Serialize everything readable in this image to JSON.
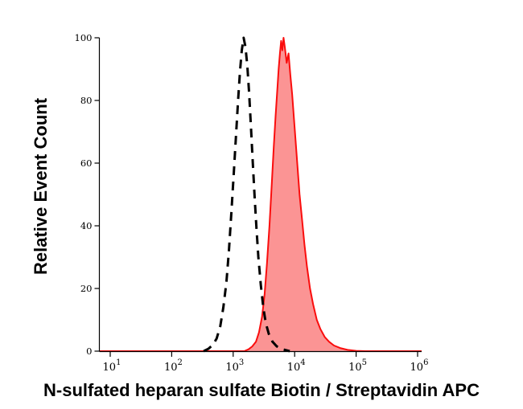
{
  "figure": {
    "background": "#ffffff",
    "axis_color": "#000000"
  },
  "chart_data": {
    "type": "area",
    "subtype": "flow-cytometry-histogram",
    "title": "",
    "xlabel": "N-sulfated heparan sulfate Biotin / Streptavidin APC",
    "ylabel": "Relative Event Count",
    "x_scale": "log10",
    "xlim_log10": [
      1,
      6
    ],
    "ylim": [
      0,
      100
    ],
    "y_ticks": [
      0,
      20,
      40,
      60,
      80,
      100
    ],
    "x_tick_exponents": [
      1,
      2,
      3,
      4,
      5,
      6
    ],
    "x_tick_base": "10",
    "grid": false,
    "legend": null,
    "series": [
      {
        "name": "stained-sample-red-filled",
        "type": "area",
        "line_style": "solid",
        "color": "#fa0d0d",
        "fill": "#fb9494",
        "stroke_width": 2,
        "baseline_full_width": true,
        "points_log10x_y": [
          [
            3.18,
            0
          ],
          [
            3.25,
            0.6
          ],
          [
            3.31,
            1.5
          ],
          [
            3.37,
            3
          ],
          [
            3.42,
            6
          ],
          [
            3.47,
            11
          ],
          [
            3.51,
            18
          ],
          [
            3.55,
            28
          ],
          [
            3.59,
            40
          ],
          [
            3.63,
            54
          ],
          [
            3.66,
            65
          ],
          [
            3.69,
            75
          ],
          [
            3.72,
            84
          ],
          [
            3.74,
            90
          ],
          [
            3.76,
            95
          ],
          [
            3.78,
            99
          ],
          [
            3.8,
            96
          ],
          [
            3.82,
            100
          ],
          [
            3.84,
            97
          ],
          [
            3.87,
            92
          ],
          [
            3.9,
            95
          ],
          [
            3.93,
            88
          ],
          [
            3.96,
            82
          ],
          [
            3.99,
            74
          ],
          [
            4.02,
            66
          ],
          [
            4.05,
            58
          ],
          [
            4.08,
            50
          ],
          [
            4.12,
            42
          ],
          [
            4.16,
            34
          ],
          [
            4.2,
            27
          ],
          [
            4.25,
            20
          ],
          [
            4.3,
            15
          ],
          [
            4.36,
            10
          ],
          [
            4.42,
            7
          ],
          [
            4.49,
            4.5
          ],
          [
            4.56,
            3
          ],
          [
            4.64,
            1.8
          ],
          [
            4.74,
            1
          ],
          [
            4.86,
            0.4
          ],
          [
            5.0,
            0.1
          ],
          [
            5.15,
            0
          ]
        ]
      },
      {
        "name": "control-black-dashed",
        "type": "line",
        "line_style": "dashed",
        "color": "#000000",
        "stroke_width": 3,
        "dash_pattern": "11 8",
        "baseline_full_width": false,
        "points_log10x_y": [
          [
            2.52,
            0
          ],
          [
            2.6,
            0.8
          ],
          [
            2.67,
            2
          ],
          [
            2.73,
            4
          ],
          [
            2.79,
            8
          ],
          [
            2.84,
            14
          ],
          [
            2.89,
            22
          ],
          [
            2.93,
            32
          ],
          [
            2.97,
            44
          ],
          [
            3.01,
            57
          ],
          [
            3.05,
            70
          ],
          [
            3.08,
            80
          ],
          [
            3.11,
            89
          ],
          [
            3.14,
            96
          ],
          [
            3.17,
            100
          ],
          [
            3.2,
            97
          ],
          [
            3.23,
            91
          ],
          [
            3.26,
            82
          ],
          [
            3.29,
            71
          ],
          [
            3.32,
            60
          ],
          [
            3.35,
            49
          ],
          [
            3.38,
            39
          ],
          [
            3.41,
            30
          ],
          [
            3.45,
            21
          ],
          [
            3.49,
            14
          ],
          [
            3.53,
            9
          ],
          [
            3.58,
            5.5
          ],
          [
            3.64,
            3
          ],
          [
            3.71,
            1.5
          ],
          [
            3.8,
            0.6
          ],
          [
            3.92,
            0
          ]
        ]
      }
    ]
  }
}
